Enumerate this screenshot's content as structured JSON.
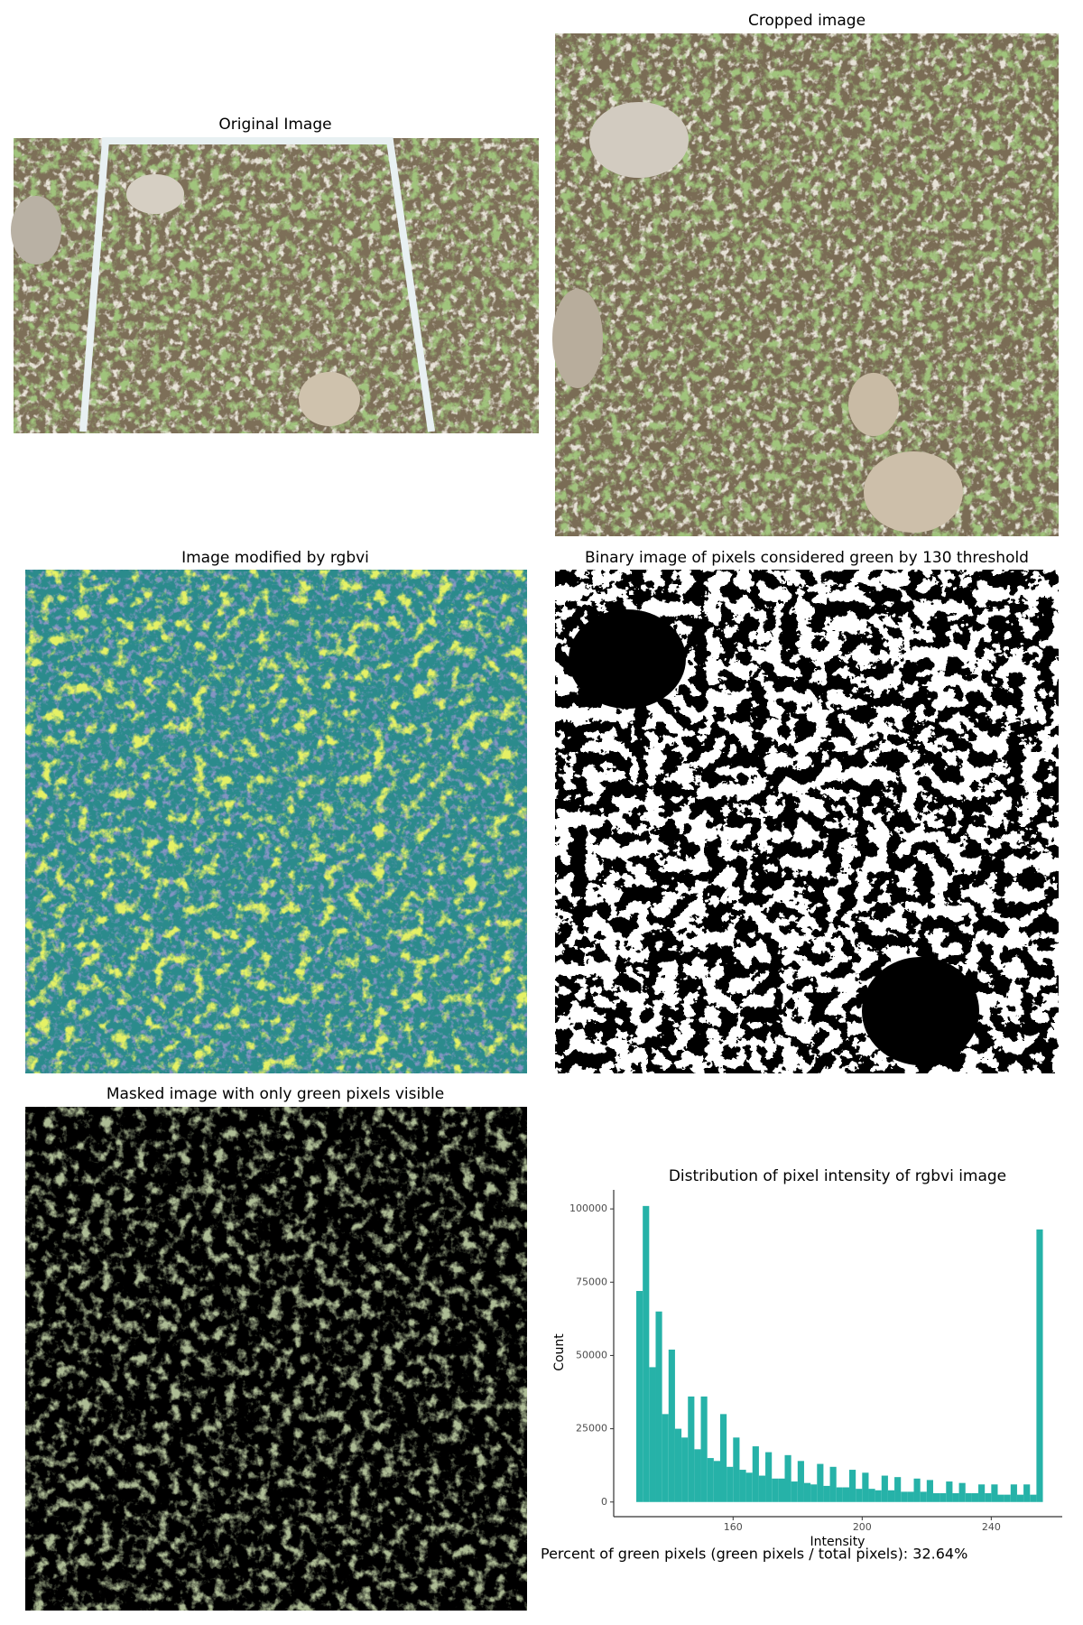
{
  "panels": {
    "original": "Original Image",
    "cropped": "Cropped image",
    "rgbvi": "Image modified by rgbvi",
    "binary": "Binary image of pixels considered green by 130 threshold",
    "masked": "Masked image with only green pixels visible"
  },
  "chart_data": {
    "type": "histogram",
    "title": "Distribution of pixel intensity of rgbvi image",
    "xlabel": "Intensity",
    "ylabel": "Count",
    "color": "#26b2a8",
    "bins": [
      130,
      132,
      134,
      136,
      138,
      140,
      142,
      144,
      146,
      148,
      150,
      152,
      154,
      156,
      158,
      160,
      162,
      164,
      166,
      168,
      170,
      172,
      174,
      176,
      178,
      180,
      182,
      184,
      186,
      188,
      190,
      192,
      194,
      196,
      198,
      200,
      202,
      204,
      206,
      208,
      210,
      212,
      214,
      216,
      218,
      220,
      222,
      224,
      226,
      228,
      230,
      232,
      234,
      236,
      238,
      240,
      242,
      244,
      246,
      248,
      250,
      252,
      254,
      256
    ],
    "counts": [
      72000,
      101000,
      46000,
      65000,
      30000,
      52000,
      25000,
      22000,
      36000,
      18000,
      36000,
      15000,
      14000,
      30000,
      12000,
      22000,
      11000,
      10000,
      19000,
      9000,
      17000,
      8000,
      8000,
      16000,
      7000,
      14000,
      6500,
      6000,
      13000,
      5500,
      12000,
      5000,
      5000,
      11000,
      4500,
      10000,
      4500,
      4000,
      9000,
      4000,
      8500,
      3500,
      3500,
      8000,
      3500,
      7500,
      3000,
      3000,
      7000,
      3000,
      6500,
      3000,
      3000,
      6000,
      3000,
      6000,
      2500,
      2500,
      6000,
      2500,
      6000,
      2500,
      93000
    ],
    "xlim": [
      123,
      262
    ],
    "ylim": [
      -5000,
      106500
    ],
    "xticks": [
      160,
      200,
      240
    ],
    "yticks": [
      0,
      25000,
      50000,
      75000,
      100000
    ]
  },
  "footer": "Percent of green pixels (green pixels / total pixels): 32.64%"
}
